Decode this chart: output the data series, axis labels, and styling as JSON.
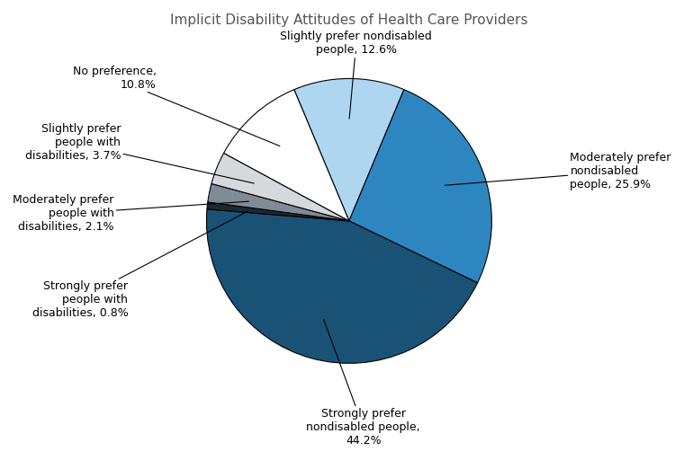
{
  "title": "Implicit Disability Attitudes of Health Care Providers",
  "slices": [
    {
      "label": "Strongly prefer\nnondisabled people,\n44.2%",
      "value": 44.2,
      "color": "#1a5276"
    },
    {
      "label": "Moderately prefer\nnondisabled\npeople, 25.9%",
      "value": 25.9,
      "color": "#2e86c1"
    },
    {
      "label": "Slightly prefer nondisabled\npeople, 12.6%",
      "value": 12.6,
      "color": "#aed6f1"
    },
    {
      "label": "No preference,\n10.8%",
      "value": 10.8,
      "color": "#ffffff"
    },
    {
      "label": "Slightly prefer\npeople with\ndisabilities, 3.7%",
      "value": 3.7,
      "color": "#d5d8dc"
    },
    {
      "label": "Moderately prefer\npeople with\ndisabilities, 2.1%",
      "value": 2.1,
      "color": "#808b96"
    },
    {
      "label": "Strongly prefer\npeople with\ndisabilities, 0.8%",
      "value": 0.8,
      "color": "#1c2833"
    }
  ],
  "title_fontsize": 11,
  "label_fontsize": 9,
  "background_color": "#ffffff"
}
